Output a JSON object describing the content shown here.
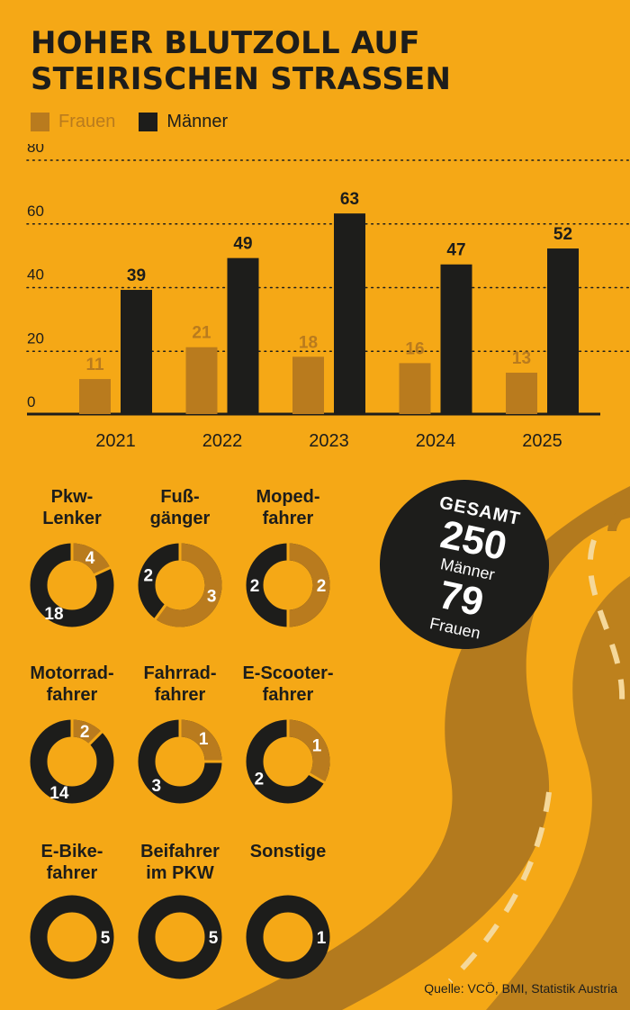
{
  "title_line1": "HOHER BLUTZOLL AUF",
  "title_line2": "STEIRISCHEN STRASSEN",
  "legend": {
    "frauen": "Frauen",
    "maenner": "Männer"
  },
  "colors": {
    "background": "#f5a816",
    "frauen": "#b97b1e",
    "maenner": "#1d1d1b",
    "road": "#b37a1e",
    "white": "#ffffff"
  },
  "chart_data": [
    {
      "type": "bar",
      "categories": [
        "2021",
        "2022",
        "2023",
        "2024",
        "2025"
      ],
      "series": [
        {
          "name": "Frauen",
          "values": [
            11,
            21,
            18,
            16,
            13
          ]
        },
        {
          "name": "Männer",
          "values": [
            39,
            49,
            63,
            47,
            52
          ]
        }
      ],
      "ylim": [
        0,
        80
      ],
      "yticks": [
        "0",
        "20",
        "40",
        "60",
        "80"
      ],
      "grid": true,
      "legend": "top-left"
    },
    {
      "type": "pie",
      "subtype": "donut-grid",
      "items": [
        {
          "label1": "Pkw-",
          "label2": "Lenker",
          "maenner": 18,
          "frauen": 4
        },
        {
          "label1": "Fuß-",
          "label2": "gänger",
          "maenner": 2,
          "frauen": 3
        },
        {
          "label1": "Moped-",
          "label2": "fahrer",
          "maenner": 2,
          "frauen": 2
        },
        {
          "label1": "Motorrad-",
          "label2": "fahrer",
          "maenner": 14,
          "frauen": 2
        },
        {
          "label1": "Fahrrad-",
          "label2": "fahrer",
          "maenner": 3,
          "frauen": 1
        },
        {
          "label1": "E-Scooter-",
          "label2": "fahrer",
          "maenner": 2,
          "frauen": 1
        },
        {
          "label1": "E-Bike-",
          "label2": "fahrer",
          "maenner": 5,
          "frauen": 0
        },
        {
          "label1": "Beifahrer",
          "label2": "im PKW",
          "maenner": 5,
          "frauen": 0
        },
        {
          "label1": "Sonstige",
          "label2": "",
          "maenner": 1,
          "frauen": 0
        }
      ]
    }
  ],
  "total": {
    "heading": "GESAMT",
    "maenner_value": "250",
    "maenner_label": "Männer",
    "frauen_value": "79",
    "frauen_label": "Frauen"
  },
  "source": "Quelle: VCÖ, BMI, Statistik Austria"
}
